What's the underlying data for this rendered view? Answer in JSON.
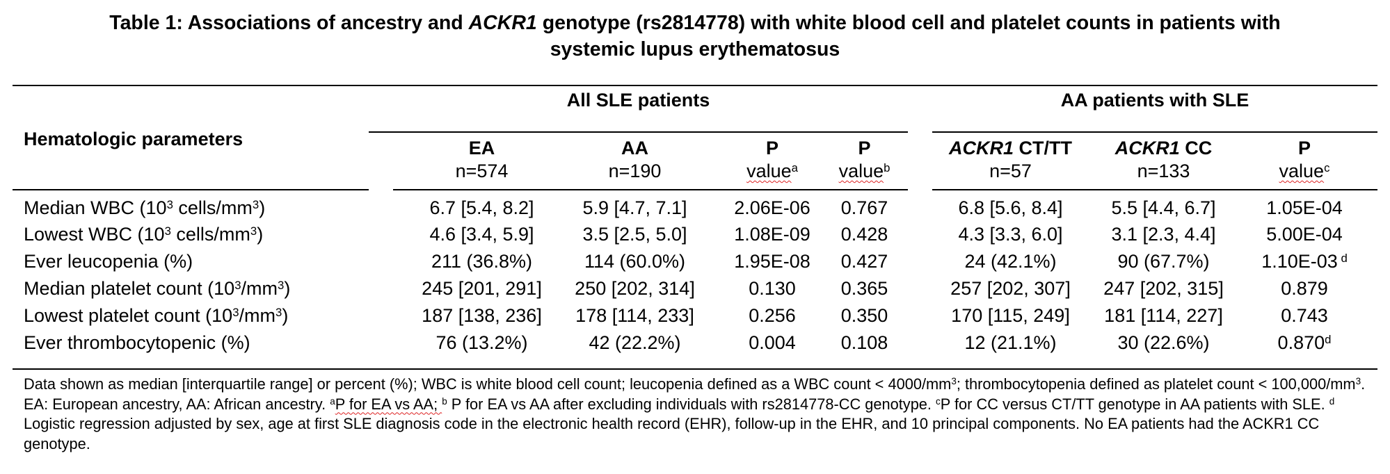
{
  "title": {
    "line1_part1": "Table 1: Associations of ancestry and ",
    "line1_italic": "ACKR1",
    "line1_part2": " genotype (rs2814778) with white blood cell and platelet counts in patients with",
    "line2": "systemic lupus erythematosus"
  },
  "header": {
    "row_label": "Hematologic parameters",
    "group_all": "All SLE patients",
    "group_aa": "AA patients with SLE",
    "columns": [
      {
        "top": "EA",
        "bottom": "n=574"
      },
      {
        "top": "AA",
        "bottom": "n=190"
      },
      {
        "top": "P",
        "bottom": "value",
        "sup": "a"
      },
      {
        "top": "P",
        "bottom": "value",
        "sup": "b"
      },
      {
        "top_italic": "ACKR1",
        "top": " CT/TT",
        "bottom": "n=57"
      },
      {
        "top_italic": "ACKR1",
        "top": " CC",
        "bottom": "n=133"
      },
      {
        "top": "P",
        "bottom": "value",
        "sup": "c"
      }
    ]
  },
  "rows": [
    {
      "param": "Median WBC (10",
      "param_sup1": "3",
      "param_mid": " cells/mm",
      "param_sup2": "3",
      "param_end": ")",
      "values": [
        "6.7 [5.4, 8.2]",
        "5.9 [4.7, 7.1]",
        "2.06E-06",
        "0.767",
        "6.8 [5.6, 8.4]",
        "5.5 [4.4, 6.7]",
        "1.05E-04"
      ],
      "last_sup": ""
    },
    {
      "param": "Lowest WBC (10",
      "param_sup1": "3",
      "param_mid": " cells/mm",
      "param_sup2": "3",
      "param_end": ")",
      "values": [
        "4.6 [3.4, 5.9]",
        "3.5 [2.5, 5.0]",
        "1.08E-09",
        "0.428",
        "4.3 [3.3, 6.0]",
        "3.1 [2.3, 4.4]",
        "5.00E-04"
      ],
      "last_sup": ""
    },
    {
      "param": "Ever leucopenia (%)",
      "param_sup1": "",
      "param_mid": "",
      "param_sup2": "",
      "param_end": "",
      "values": [
        "211 (36.8%)",
        "114 (60.0%)",
        "1.95E-08",
        "0.427",
        "24 (42.1%)",
        "90 (67.7%)",
        "1.10E-03"
      ],
      "last_sup": " d"
    },
    {
      "param": "Median platelet count (10",
      "param_sup1": "3",
      "param_mid": "/mm",
      "param_sup2": "3",
      "param_end": ")",
      "values": [
        "245 [201, 291]",
        "250 [202, 314]",
        "0.130",
        "0.365",
        "257 [202, 307]",
        "247 [202, 315]",
        "0.879"
      ],
      "last_sup": ""
    },
    {
      "param": "Lowest platelet count (10",
      "param_sup1": "3",
      "param_mid": "/mm",
      "param_sup2": "3",
      "param_end": ")",
      "values": [
        "187 [138, 236]",
        "178 [114, 233]",
        "0.256",
        "0.350",
        "170 [115, 249]",
        "181 [114, 227]",
        "0.743"
      ],
      "last_sup": ""
    },
    {
      "param": "Ever thrombocytopenic (%)",
      "param_sup1": "",
      "param_mid": "",
      "param_sup2": "",
      "param_end": "",
      "values": [
        "76 (13.2%)",
        "42 (22.2%)",
        "0.004",
        "0.108",
        "12 (21.1%)",
        "30 (22.6%)",
        "0.870"
      ],
      "last_sup": "d"
    }
  ],
  "footnote": {
    "p1": "Data shown as median [interquartile range] or percent (%); WBC is white blood cell count; leucopenia defined as a WBC count < 4000/mm",
    "p1_sup": "3",
    "p2": "; thrombocytopenia defined as platelet count < 100,000/mm",
    "p2_sup": "3",
    "p3": ". EA: European ancestry, AA: African ancestry. ",
    "a_sup": "a",
    "p4": "P for EA vs AA; ",
    "b_sup": "b",
    "p5": " P for EA vs AA after excluding individuals with rs2814778-CC genotype. ",
    "c_sup": "c",
    "p6": "P for CC versus CT/TT genotype in AA patients with SLE. ",
    "d_sup": "d",
    "p7": " Logistic regression adjusted by sex, age at first SLE diagnosis code in the electronic health record (EHR), follow-up in the EHR, and 10 principal components. No EA patients had the ACKR1 CC genotype."
  }
}
